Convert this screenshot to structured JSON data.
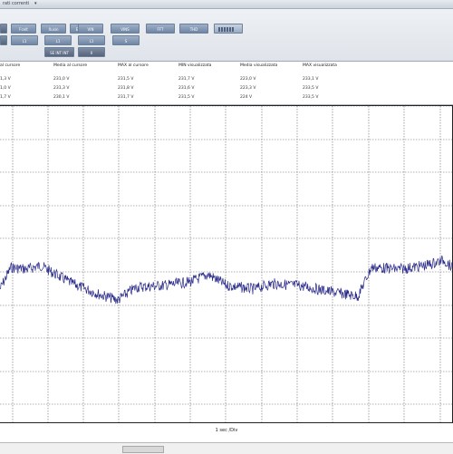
{
  "window": {
    "title": "rati correnti",
    "dropdown_icon": "chevron-down-icon"
  },
  "toolbar": {
    "row1": [
      {
        "label": ""
      },
      {
        "label": "Fcelt"
      },
      {
        "label": "Xusin"
      },
      {
        "label": "Ench gri"
      },
      {
        "label": "VIN"
      },
      {
        "label": "VINS"
      },
      {
        "label": "FFT"
      },
      {
        "label": "THD"
      }
    ],
    "row2": [
      {
        "label": ""
      },
      {
        "label": "L1"
      },
      {
        "label": "L1"
      },
      {
        "label": "L1"
      },
      {
        "label": "S"
      }
    ],
    "row3": [
      {
        "label": "SE INT INT"
      },
      {
        "label": "Il"
      }
    ]
  },
  "measurements": {
    "headers": [
      "al cursore",
      "Media al cursore",
      "MAX al cursore",
      "MIN visualizzata",
      "Media visualizzata",
      "MAX visualizzata"
    ],
    "rows": [
      [
        "1,3 V",
        "231,0 V",
        "231,5 V",
        "231,7 V",
        "223,0 V",
        "233,1 V"
      ],
      [
        "1,0 V",
        "231,3 V",
        "231,8 V",
        "231,6 V",
        "223,3 V",
        "233,5 V"
      ],
      [
        "1,7 V",
        "230,1 V",
        "231,7 V",
        "231,5 V",
        "224 V",
        "233,5 V"
      ]
    ]
  },
  "plot": {
    "xlabel": "1 sec /Div",
    "line_color": "#2a2a8a",
    "grid_color": "#666666"
  }
}
